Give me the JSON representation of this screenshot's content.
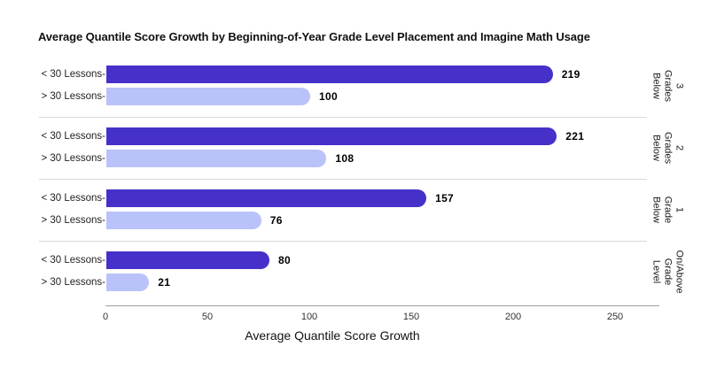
{
  "chart_data": {
    "type": "bar",
    "orientation": "horizontal",
    "title": "Average Quantile Score Growth by Beginning-of-Year Grade Level Placement and Imagine Math Usage",
    "xlabel": "Average Quantile Score Growth",
    "xlim": [
      0,
      250
    ],
    "xticks": [
      "0",
      "50",
      "100",
      "150",
      "200",
      "250"
    ],
    "grid": "group separators only",
    "legend": "none",
    "groups": [
      {
        "label": "3 Grades Below",
        "label_lines": "3 Grades\nBelow",
        "bars": [
          {
            "label": "< 30 Lessons-",
            "value": 219,
            "color_key": "primary"
          },
          {
            "label": "> 30 Lessons-",
            "value": 100,
            "color_key": "secondary"
          }
        ]
      },
      {
        "label": "2 Grades Below",
        "label_lines": "2 Grades\nBelow",
        "bars": [
          {
            "label": "< 30 Lessons-",
            "value": 221,
            "color_key": "primary"
          },
          {
            "label": "> 30 Lessons-",
            "value": 108,
            "color_key": "secondary"
          }
        ]
      },
      {
        "label": "1 Grade Below",
        "label_lines": "1 Grade\nBelow",
        "bars": [
          {
            "label": "< 30 Lessons-",
            "value": 157,
            "color_key": "primary"
          },
          {
            "label": "> 30 Lessons-",
            "value": 76,
            "color_key": "secondary"
          }
        ]
      },
      {
        "label": "On/Above Grade Level",
        "label_lines": "On/Above\nGrade Level",
        "bars": [
          {
            "label": "< 30 Lessons-",
            "value": 80,
            "color_key": "primary"
          },
          {
            "label": "> 30 Lessons-",
            "value": 21,
            "color_key": "secondary"
          }
        ]
      }
    ],
    "colors": {
      "primary_bar": "#4531C9",
      "secondary_bar": "#B9C3FA",
      "separator": "#D9D9D9",
      "axis_line": "#9E9E9E",
      "text": "#1A1A1A"
    }
  }
}
